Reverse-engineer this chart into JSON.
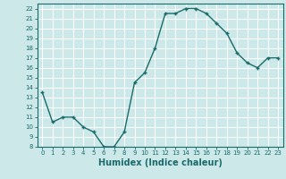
{
  "x": [
    0,
    1,
    2,
    3,
    4,
    5,
    6,
    7,
    8,
    9,
    10,
    11,
    12,
    13,
    14,
    15,
    16,
    17,
    18,
    19,
    20,
    21,
    22,
    23
  ],
  "y": [
    13.5,
    10.5,
    11.0,
    11.0,
    10.0,
    9.5,
    8.0,
    8.0,
    9.5,
    14.5,
    15.5,
    18.0,
    21.5,
    21.5,
    22.0,
    22.0,
    21.5,
    20.5,
    19.5,
    17.5,
    16.5,
    16.0,
    17.0,
    17.0
  ],
  "line_color": "#1a6b6b",
  "marker": "+",
  "bg_color": "#cce8e8",
  "grid_color": "#ffffff",
  "xlabel": "Humidex (Indice chaleur)",
  "xlim": [
    -0.5,
    23.5
  ],
  "ylim": [
    8,
    22.5
  ],
  "yticks": [
    8,
    9,
    10,
    11,
    12,
    13,
    14,
    15,
    16,
    17,
    18,
    19,
    20,
    21,
    22
  ],
  "xticks": [
    0,
    1,
    2,
    3,
    4,
    5,
    6,
    7,
    8,
    9,
    10,
    11,
    12,
    13,
    14,
    15,
    16,
    17,
    18,
    19,
    20,
    21,
    22,
    23
  ],
  "tick_fontsize": 5.0,
  "label_fontsize": 7.0,
  "linewidth": 1.0,
  "markersize": 3.5,
  "markeredgewidth": 1.0
}
